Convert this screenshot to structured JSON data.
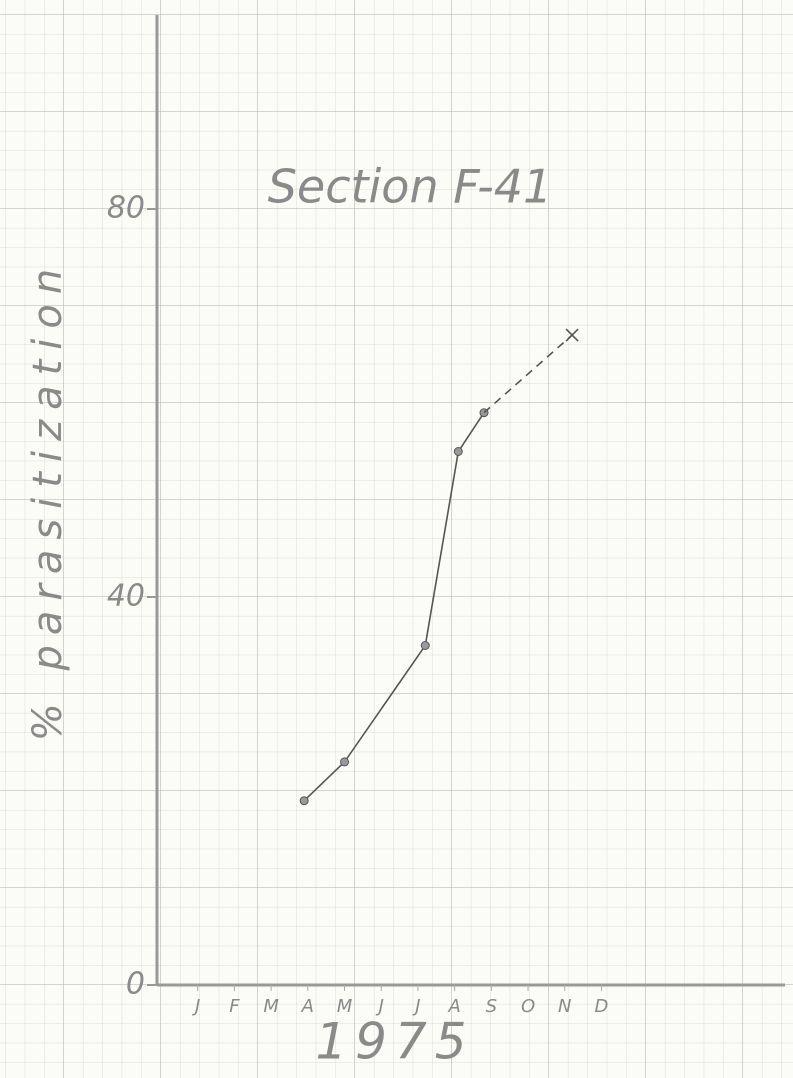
{
  "chart_data": {
    "type": "line",
    "title": "Section F-41",
    "y_label": "% parasitization",
    "x_label": "1975",
    "xlim": [
      0,
      17
    ],
    "xticks": [
      {
        "value": 1,
        "label": "J"
      },
      {
        "value": 2,
        "label": "F"
      },
      {
        "value": 3,
        "label": "M"
      },
      {
        "value": 4,
        "label": "A"
      },
      {
        "value": 5,
        "label": "M"
      },
      {
        "value": 6,
        "label": "J"
      },
      {
        "value": 7,
        "label": "J"
      },
      {
        "value": 8,
        "label": "A"
      },
      {
        "value": 9,
        "label": "S"
      },
      {
        "value": 10,
        "label": "O"
      },
      {
        "value": 11,
        "label": "N"
      },
      {
        "value": 12,
        "label": "D"
      }
    ],
    "ylim": [
      0,
      100
    ],
    "yticks": [
      0,
      40,
      80
    ],
    "series": [
      {
        "style": "solid",
        "marker": "circle",
        "color": "#555555",
        "x": [
          3.9,
          5,
          7.2,
          8.1,
          8.8
        ],
        "values": [
          19,
          23,
          35,
          55,
          59
        ]
      },
      {
        "style": "dashed",
        "marker": "cross",
        "color": "#555555",
        "x": [
          8.8,
          11.2
        ],
        "values": [
          59,
          67
        ]
      }
    ]
  }
}
